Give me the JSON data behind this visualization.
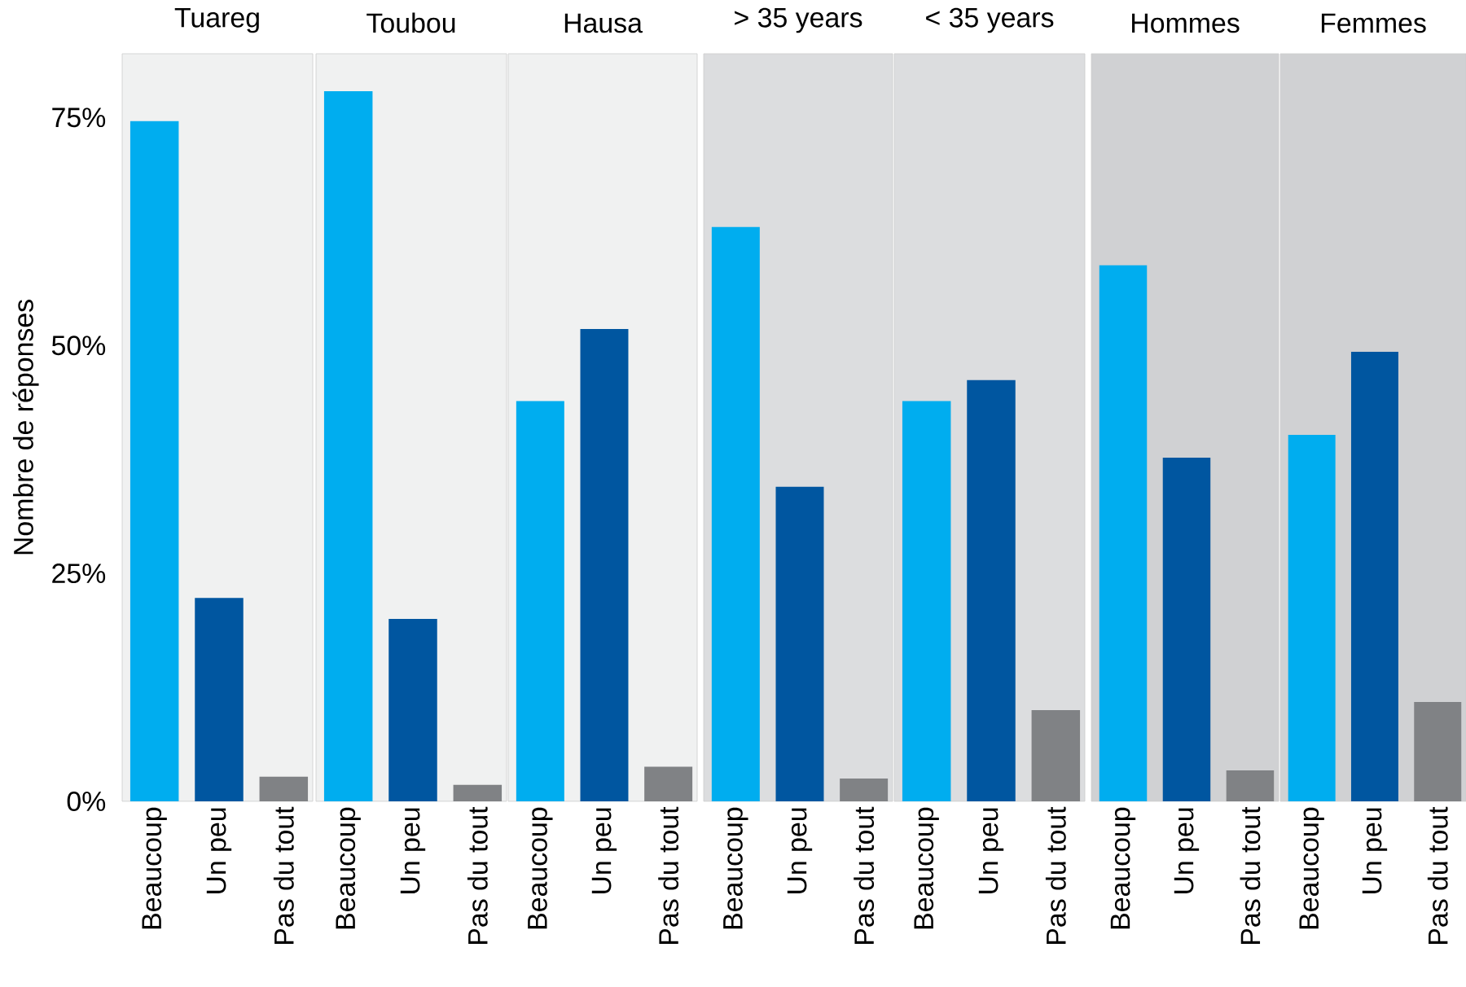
{
  "chart_data": [
    {
      "type": "bar",
      "title": "Tuareg",
      "ylabel": "Nombre de réponses",
      "categories": [
        "Beaucoup",
        "Un peu",
        "Pas du tout"
      ],
      "values": [
        74.6,
        22.3,
        2.7
      ],
      "colors": [
        "#00adef",
        "#0056a0",
        "#808285"
      ],
      "ylim": [
        0,
        82
      ],
      "yticks": [
        {
          "value": 0,
          "label": "0%"
        },
        {
          "value": 25,
          "label": "25%"
        },
        {
          "value": 50,
          "label": "50%"
        },
        {
          "value": 75,
          "label": "75%"
        }
      ]
    },
    {
      "type": "bar",
      "title": "Toubou",
      "categories": [
        "Beaucoup",
        "Un peu",
        "Pas du tout"
      ],
      "values": [
        77.9,
        20.0,
        1.8
      ],
      "colors": [
        "#00adef",
        "#0056a0",
        "#808285"
      ],
      "ylim": [
        0,
        82
      ],
      "tick_labels": "x"
    },
    {
      "type": "bar",
      "title": "Hausa",
      "categories": [
        "Beaucoup",
        "Un peu",
        "Pas du tout"
      ],
      "values": [
        43.9,
        51.8,
        3.8
      ],
      "colors": [
        "#00adef",
        "#0056a0",
        "#808285"
      ],
      "ylim": [
        0,
        82
      ],
      "tick_labels": "x"
    },
    {
      "type": "bar",
      "title": "> 35 years",
      "categories": [
        "Beaucoup",
        "Un peu",
        "Pas du tout"
      ],
      "values": [
        63.0,
        34.5,
        2.5
      ],
      "colors": [
        "#00adef",
        "#0056a0",
        "#808285"
      ],
      "ylim": [
        0,
        82
      ],
      "tick_labels": "x"
    },
    {
      "type": "bar",
      "title": "< 35 years",
      "categories": [
        "Beaucoup",
        "Un peu",
        "Pas du tout"
      ],
      "values": [
        43.9,
        46.2,
        10.0
      ],
      "colors": [
        "#00adef",
        "#0056a0",
        "#808285"
      ],
      "ylim": [
        0,
        82
      ],
      "tick_labels": "x"
    },
    {
      "type": "bar",
      "title": "Hommes",
      "categories": [
        "Beaucoup",
        "Un peu",
        "Pas du tout"
      ],
      "values": [
        58.8,
        37.7,
        3.4
      ],
      "colors": [
        "#00adef",
        "#0056a0",
        "#808285"
      ],
      "ylim": [
        0,
        82
      ],
      "tick_labels": "x"
    },
    {
      "type": "bar",
      "title": "Femmes",
      "categories": [
        "Beaucoup",
        "Un peu",
        "Pas du tout"
      ],
      "values": [
        40.2,
        49.3,
        10.9
      ],
      "colors": [
        "#00adef",
        "#0056a0",
        "#808285"
      ],
      "ylim": [
        0,
        82
      ],
      "tick_labels": "x"
    }
  ]
}
